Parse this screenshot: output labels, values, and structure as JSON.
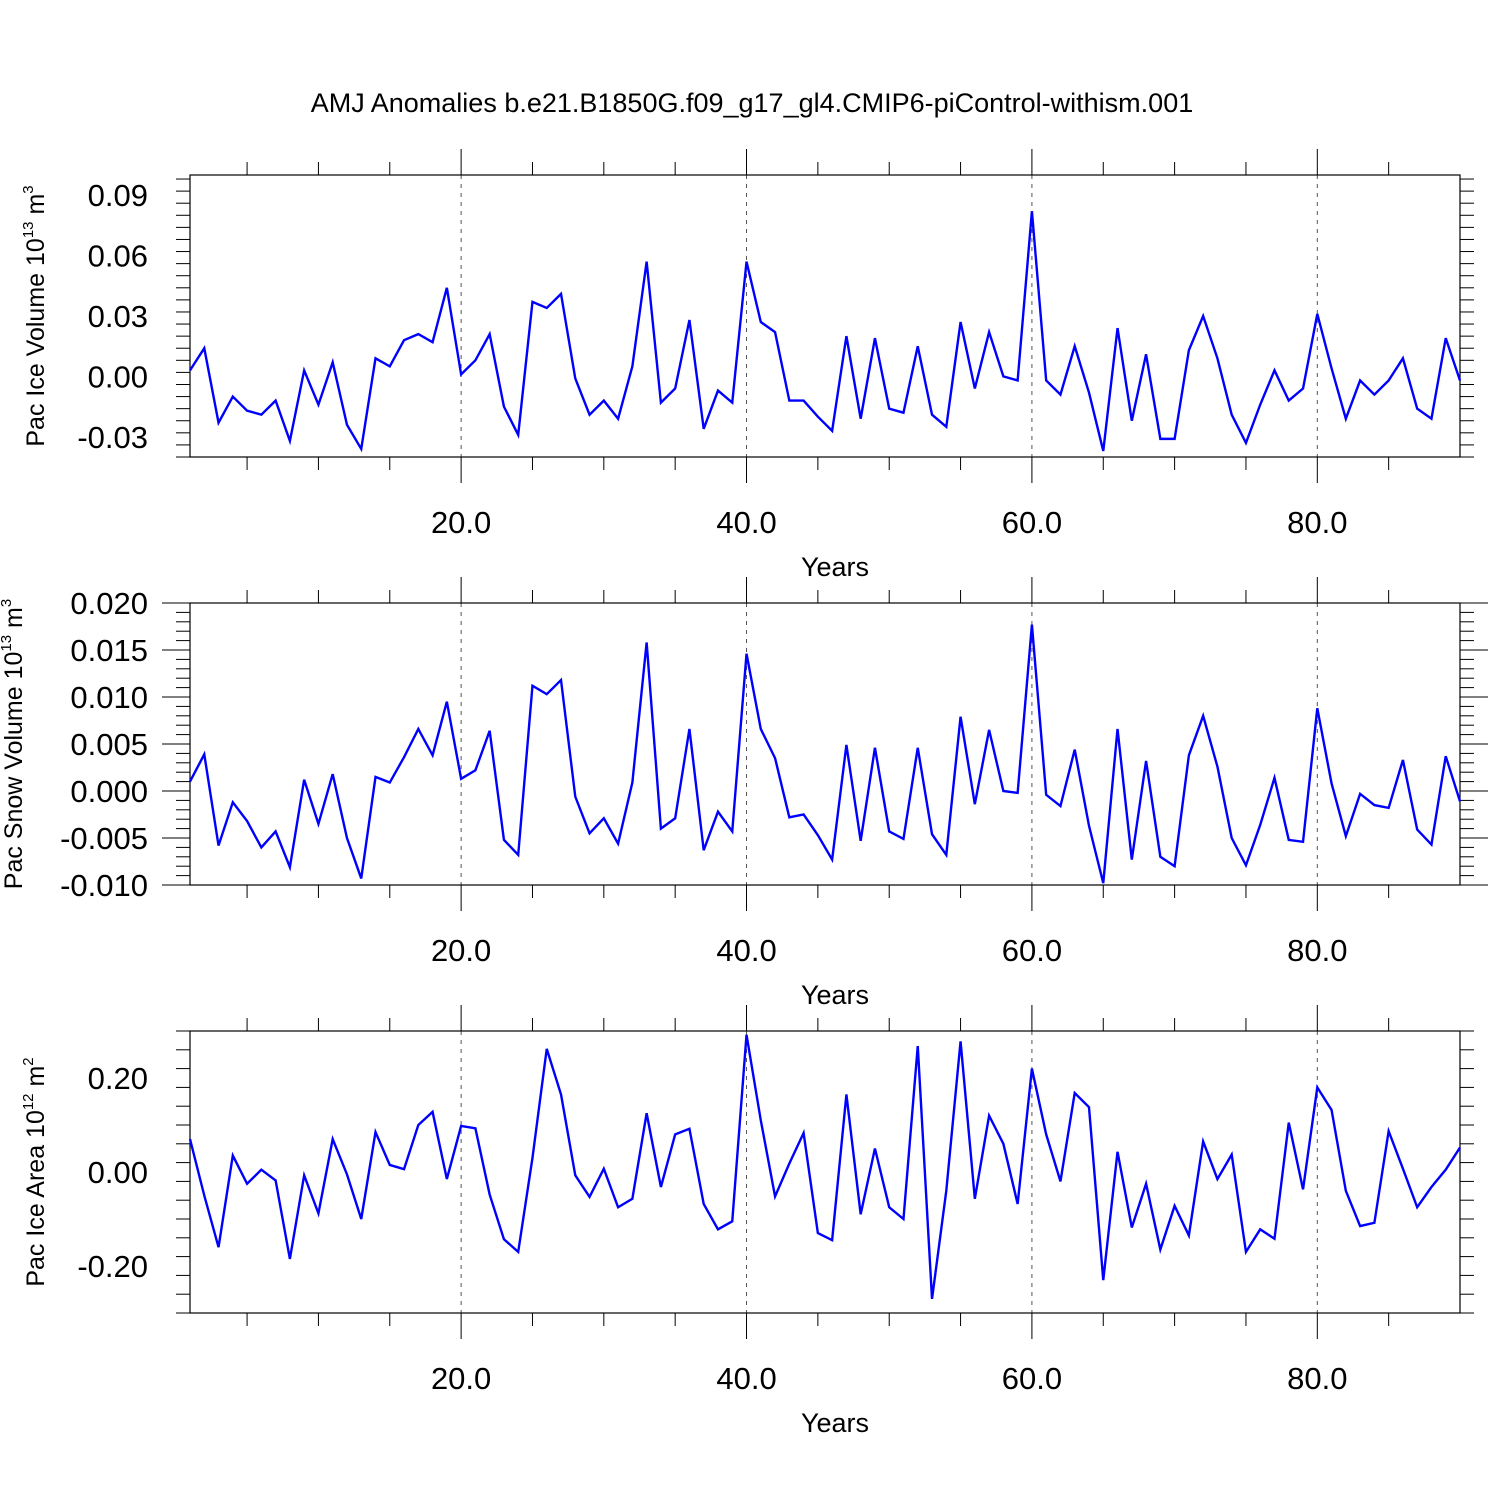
{
  "figure": {
    "title": "AMJ Anomalies b.e21.B1850G.f09_g17_gl4.CMIP6-piControl-withism.001",
    "line_color": "#0000ff",
    "grid_color": "#555555"
  },
  "chart_data": [
    {
      "type": "line",
      "title": "",
      "xlabel": "Years",
      "ylabel": {
        "main": "Pac Ice Volume 10",
        "exponent": "13",
        "unit": " m",
        "unit_exponent": "3"
      },
      "xlim": [
        1,
        90
      ],
      "ylim": [
        -0.04,
        0.1
      ],
      "xticks": [
        20,
        40,
        60,
        80
      ],
      "xtick_labels": [
        "20.0",
        "40.0",
        "60.0",
        "80.0"
      ],
      "yticks": [
        -0.03,
        0.0,
        0.03,
        0.06,
        0.09
      ],
      "ytick_labels": [
        "-0.03",
        "0.00",
        "0.03",
        "0.06",
        "0.09"
      ],
      "grid": "vertical dashed at major x ticks",
      "x": [
        1,
        2,
        3,
        4,
        5,
        6,
        7,
        8,
        9,
        10,
        11,
        12,
        13,
        14,
        15,
        16,
        17,
        18,
        19,
        20,
        21,
        22,
        23,
        24,
        25,
        26,
        27,
        28,
        29,
        30,
        31,
        32,
        33,
        34,
        35,
        36,
        37,
        38,
        39,
        40,
        41,
        42,
        43,
        44,
        45,
        46,
        47,
        48,
        49,
        50,
        51,
        52,
        53,
        54,
        55,
        56,
        57,
        58,
        59,
        60,
        61,
        62,
        63,
        64,
        65,
        66,
        67,
        68,
        69,
        70,
        71,
        72,
        73,
        74,
        75,
        76,
        77,
        78,
        79,
        80,
        81,
        82,
        83,
        84,
        85,
        86,
        87,
        88,
        89,
        90
      ],
      "series": [
        {
          "values": [
            0.003,
            0.014,
            -0.023,
            -0.01,
            -0.017,
            -0.019,
            -0.012,
            -0.032,
            0.003,
            -0.014,
            0.007,
            -0.024,
            -0.036,
            0.009,
            0.005,
            0.018,
            0.021,
            0.017,
            0.044,
            0.001,
            0.008,
            0.021,
            -0.015,
            -0.029,
            0.037,
            0.034,
            0.041,
            -0.001,
            -0.019,
            -0.012,
            -0.021,
            0.005,
            0.057,
            -0.013,
            -0.006,
            0.028,
            -0.026,
            -0.007,
            -0.013,
            0.057,
            0.027,
            0.022,
            -0.012,
            -0.012,
            -0.02,
            -0.027,
            0.02,
            -0.021,
            0.019,
            -0.016,
            -0.018,
            0.015,
            -0.019,
            -0.025,
            0.027,
            -0.006,
            0.022,
            0.0,
            -0.002,
            0.082,
            -0.002,
            -0.009,
            0.015,
            -0.008,
            -0.037,
            0.024,
            -0.022,
            0.011,
            -0.031,
            -0.031,
            0.013,
            0.03,
            0.009,
            -0.019,
            -0.033,
            -0.014,
            0.003,
            -0.012,
            -0.006,
            0.031,
            0.004,
            -0.021,
            -0.002,
            -0.009,
            -0.002,
            0.009,
            -0.016,
            -0.021,
            0.019,
            -0.002
          ]
        }
      ]
    },
    {
      "type": "line",
      "title": "",
      "xlabel": "Years",
      "ylabel": {
        "main": "Pac Snow Volume 10",
        "exponent": "13",
        "unit": " m",
        "unit_exponent": "3"
      },
      "xlim": [
        1,
        90
      ],
      "ylim": [
        -0.01,
        0.02
      ],
      "xticks": [
        20,
        40,
        60,
        80
      ],
      "xtick_labels": [
        "20.0",
        "40.0",
        "60.0",
        "80.0"
      ],
      "yticks": [
        -0.01,
        -0.005,
        0.0,
        0.005,
        0.01,
        0.015,
        0.02
      ],
      "ytick_labels": [
        "-0.010",
        "-0.005",
        "0.000",
        "0.005",
        "0.010",
        "0.015",
        "0.020"
      ],
      "grid": "vertical dashed at major x ticks",
      "x": [
        1,
        2,
        3,
        4,
        5,
        6,
        7,
        8,
        9,
        10,
        11,
        12,
        13,
        14,
        15,
        16,
        17,
        18,
        19,
        20,
        21,
        22,
        23,
        24,
        25,
        26,
        27,
        28,
        29,
        30,
        31,
        32,
        33,
        34,
        35,
        36,
        37,
        38,
        39,
        40,
        41,
        42,
        43,
        44,
        45,
        46,
        47,
        48,
        49,
        50,
        51,
        52,
        53,
        54,
        55,
        56,
        57,
        58,
        59,
        60,
        61,
        62,
        63,
        64,
        65,
        66,
        67,
        68,
        69,
        70,
        71,
        72,
        73,
        74,
        75,
        76,
        77,
        78,
        79,
        80,
        81,
        82,
        83,
        84,
        85,
        86,
        87,
        88,
        89,
        90
      ],
      "series": [
        {
          "values": [
            0.001,
            0.0039,
            -0.0058,
            -0.0012,
            -0.0032,
            -0.006,
            -0.0043,
            -0.0081,
            0.0012,
            -0.0035,
            0.0018,
            -0.005,
            -0.0093,
            0.0015,
            0.0009,
            0.0036,
            0.0066,
            0.0038,
            0.0095,
            0.0013,
            0.0022,
            0.0064,
            -0.0052,
            -0.0068,
            0.0112,
            0.0103,
            0.0118,
            -0.0006,
            -0.0045,
            -0.0029,
            -0.0056,
            0.0009,
            0.0158,
            -0.004,
            -0.0029,
            0.0066,
            -0.0063,
            -0.0022,
            -0.0043,
            0.0146,
            0.0066,
            0.0035,
            -0.0028,
            -0.0025,
            -0.0047,
            -0.0073,
            0.0049,
            -0.0053,
            0.0046,
            -0.0043,
            -0.0051,
            0.0046,
            -0.0046,
            -0.0068,
            0.0079,
            -0.0014,
            0.0065,
            0.0,
            -0.0002,
            0.0177,
            -0.0004,
            -0.0016,
            0.0044,
            -0.0037,
            -0.0098,
            0.0066,
            -0.0073,
            0.0032,
            -0.007,
            -0.008,
            0.0038,
            0.008,
            0.0026,
            -0.005,
            -0.0079,
            -0.0036,
            0.0014,
            -0.0052,
            -0.0054,
            0.0088,
            0.0008,
            -0.0048,
            -0.0003,
            -0.0015,
            -0.0018,
            0.0033,
            -0.0041,
            -0.0057,
            0.0037,
            -0.0011
          ]
        }
      ]
    },
    {
      "type": "line",
      "title": "",
      "xlabel": "Years",
      "ylabel": {
        "main": "Pac Ice Area 10",
        "exponent": "12",
        "unit": " m",
        "unit_exponent": "2"
      },
      "xlim": [
        1,
        90
      ],
      "ylim": [
        -0.3,
        0.3
      ],
      "xticks": [
        20,
        40,
        60,
        80
      ],
      "xtick_labels": [
        "20.0",
        "40.0",
        "60.0",
        "80.0"
      ],
      "yticks": [
        -0.2,
        0.0,
        0.2
      ],
      "ytick_labels": [
        "-0.20",
        "0.00",
        "0.20"
      ],
      "grid": "vertical dashed at major x ticks",
      "x": [
        1,
        2,
        3,
        4,
        5,
        6,
        7,
        8,
        9,
        10,
        11,
        12,
        13,
        14,
        15,
        16,
        17,
        18,
        19,
        20,
        21,
        22,
        23,
        24,
        25,
        26,
        27,
        28,
        29,
        30,
        31,
        32,
        33,
        34,
        35,
        36,
        37,
        38,
        39,
        40,
        41,
        42,
        43,
        44,
        45,
        46,
        47,
        48,
        49,
        50,
        51,
        52,
        53,
        54,
        55,
        56,
        57,
        58,
        59,
        60,
        61,
        62,
        63,
        64,
        65,
        66,
        67,
        68,
        69,
        70,
        71,
        72,
        73,
        74,
        75,
        76,
        77,
        78,
        79,
        80,
        81,
        82,
        83,
        84,
        85,
        86,
        87,
        88,
        89,
        90
      ],
      "series": [
        {
          "values": [
            0.07,
            -0.05,
            -0.16,
            0.035,
            -0.025,
            0.005,
            -0.018,
            -0.185,
            -0.007,
            -0.088,
            0.07,
            -0.005,
            -0.1,
            0.085,
            0.015,
            0.006,
            0.1,
            0.128,
            -0.015,
            0.098,
            0.093,
            -0.048,
            -0.143,
            -0.17,
            0.03,
            0.262,
            0.165,
            -0.007,
            -0.053,
            0.007,
            -0.075,
            -0.057,
            0.125,
            -0.032,
            0.08,
            0.092,
            -0.068,
            -0.122,
            -0.105,
            0.292,
            0.11,
            -0.052,
            0.018,
            0.083,
            -0.13,
            -0.145,
            0.165,
            -0.09,
            0.05,
            -0.075,
            -0.1,
            0.268,
            -0.27,
            -0.04,
            0.278,
            -0.057,
            0.12,
            0.06,
            -0.068,
            0.22,
            0.08,
            -0.02,
            0.168,
            0.138,
            -0.23,
            0.043,
            -0.118,
            -0.025,
            -0.165,
            -0.072,
            -0.135,
            0.065,
            -0.015,
            0.037,
            -0.17,
            -0.122,
            -0.142,
            0.105,
            -0.037,
            0.18,
            0.132,
            -0.04,
            -0.115,
            -0.108,
            0.087,
            0.007,
            -0.075,
            -0.032,
            0.005,
            0.052
          ]
        }
      ]
    }
  ]
}
